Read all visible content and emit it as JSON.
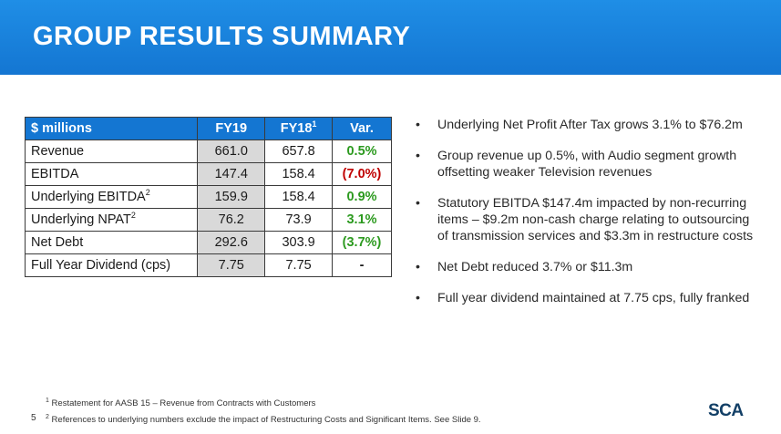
{
  "header": {
    "title": "GROUP RESULTS SUMMARY"
  },
  "table": {
    "columns": {
      "label": "$ millions",
      "fy19": "FY19",
      "fy18": "FY18",
      "fy18_sup": "1",
      "var": "Var."
    },
    "rows": [
      {
        "label": "Revenue",
        "sup": "",
        "fy19": "661.0",
        "fy18": "657.8",
        "var": "0.5%",
        "var_color": "#2c9a1f"
      },
      {
        "label": "EBITDA",
        "sup": "",
        "fy19": "147.4",
        "fy18": "158.4",
        "var": "(7.0%)",
        "var_color": "#c00000"
      },
      {
        "label": "Underlying EBITDA",
        "sup": "2",
        "fy19": "159.9",
        "fy18": "158.4",
        "var": "0.9%",
        "var_color": "#2c9a1f"
      },
      {
        "label": "Underlying NPAT",
        "sup": "2",
        "fy19": "76.2",
        "fy18": "73.9",
        "var": "3.1%",
        "var_color": "#2c9a1f"
      },
      {
        "label": "Net Debt",
        "sup": "",
        "fy19": "292.6",
        "fy18": "303.9",
        "var": "(3.7%)",
        "var_color": "#2c9a1f"
      },
      {
        "label": "Full Year Dividend (cps)",
        "sup": "",
        "fy19": "7.75",
        "fy18": "7.75",
        "var": "-",
        "var_color": "#1a1a1a"
      }
    ]
  },
  "bullets": [
    "Underlying Net Profit After Tax grows 3.1% to $76.2m",
    "Group revenue up 0.5%, with Audio segment growth offsetting weaker Television revenues",
    "Statutory EBITDA $147.4m impacted by non-recurring items – $9.2m non-cash charge relating to outsourcing of transmission services and $3.3m in restructure costs",
    "Net Debt reduced 3.7% or $11.3m",
    "Full year dividend maintained at 7.75 cps, fully franked"
  ],
  "footnotes": {
    "note1_marker": "1",
    "note1": "Restatement for AASB 15 – Revenue from Contracts with Customers",
    "note2_marker": "2",
    "note2": "References to underlying numbers exclude the impact of Restructuring Costs and Significant Items. See Slide 9."
  },
  "page_number": "5",
  "logo": "SCA",
  "colors": {
    "header_blue": "#1476d2",
    "positive": "#2c9a1f",
    "negative": "#c00000",
    "fy19_shade": "#d9d9d9"
  }
}
